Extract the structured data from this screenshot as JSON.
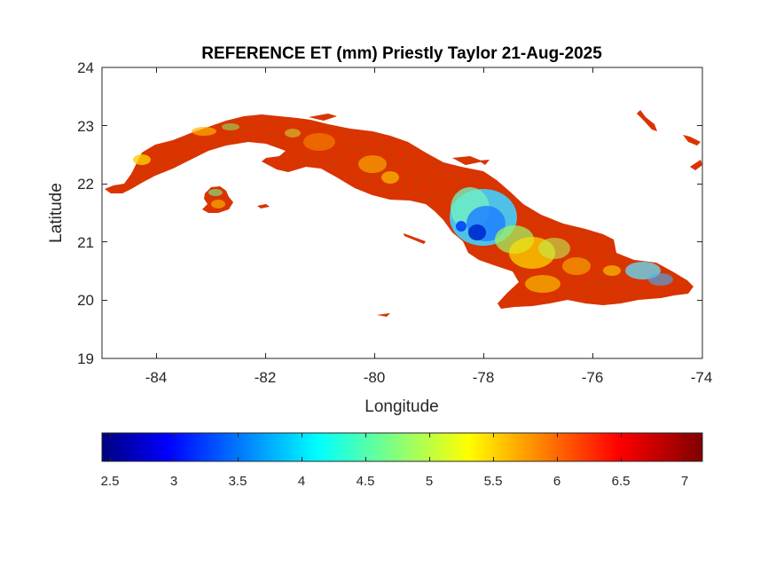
{
  "map": {
    "title": "REFERENCE ET (mm) Priestly Taylor 21-Aug-2025",
    "xlabel": "Longitude",
    "ylabel": "Latitude",
    "xlim": [
      -85,
      -74
    ],
    "ylim": [
      19,
      24
    ],
    "x_ticks": [
      "-84",
      "-82",
      "-80",
      "-78",
      "-76",
      "-74"
    ],
    "y_ticks": [
      "24",
      "23",
      "22",
      "21",
      "20",
      "19"
    ],
    "colorbar": {
      "colormap": "jet",
      "range": [
        2.4,
        7.1
      ],
      "ticks": [
        "2.5",
        "3",
        "3.5",
        "4",
        "4.5",
        "5",
        "5.5",
        "6",
        "6.5",
        "7"
      ],
      "colors": [
        "#000080",
        "#0000ff",
        "#00ffff",
        "#ffff00",
        "#ff0000",
        "#800000"
      ]
    },
    "region": "Cuba",
    "dominant_value_color": "#e03000"
  }
}
